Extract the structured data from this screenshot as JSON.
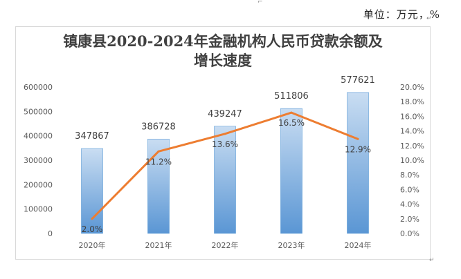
{
  "unit_text": "单位：万元，%",
  "chart_data": {
    "type": "bar",
    "title_line1": "镇康县2020-2024年金融机构人民币贷款余额及",
    "title_line2": "增长速度",
    "categories": [
      "2020年",
      "2021年",
      "2022年",
      "2023年",
      "2024年"
    ],
    "series": [
      {
        "type": "bar",
        "axis": "left",
        "values": [
          347867,
          386728,
          439247,
          511806,
          577621
        ],
        "labels": [
          "347867",
          "386728",
          "439247",
          "511806",
          "577621"
        ]
      },
      {
        "type": "line",
        "axis": "right",
        "values": [
          2.0,
          11.2,
          13.6,
          16.5,
          12.9
        ],
        "labels": [
          "2.0%",
          "11.2%",
          "13.6%",
          "16.5%",
          "12.9%"
        ]
      }
    ],
    "y_left": {
      "min": 0,
      "max": 600000,
      "ticks": [
        "0",
        "100000",
        "200000",
        "300000",
        "400000",
        "500000",
        "600000"
      ]
    },
    "y_right": {
      "min": 0,
      "max": 20,
      "ticks": [
        "0.0%",
        "2.0%",
        "4.0%",
        "6.0%",
        "8.0%",
        "10.0%",
        "12.0%",
        "14.0%",
        "16.0%",
        "18.0%",
        "20.0%"
      ]
    },
    "grid": false,
    "legend": "none",
    "colors": {
      "bar_top": "#c9ddf2",
      "bar_bottom": "#5a96d4",
      "bar_edge": "#5b9bd5",
      "line": "#ed7d31"
    }
  }
}
